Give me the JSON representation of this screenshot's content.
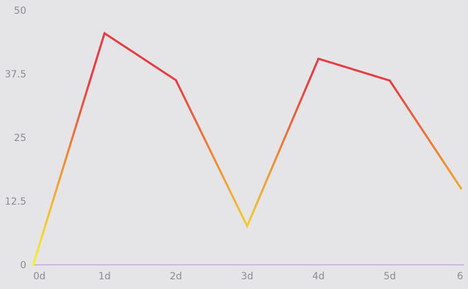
{
  "chart_data": {
    "type": "line",
    "title": "",
    "xlabel": "",
    "ylabel": "",
    "x": [
      "0d",
      "1d",
      "2d",
      "3d",
      "4d",
      "5d",
      "6"
    ],
    "series": [
      {
        "values": [
          0,
          45.5,
          36.3,
          7.6,
          40.5,
          36.2,
          15.0
        ]
      }
    ],
    "ylim": [
      0,
      50
    ],
    "yticks": [
      0,
      12.5,
      25,
      37.5,
      50
    ],
    "ytick_labels": [
      "0",
      "12.5",
      "25",
      "37.5",
      "50"
    ],
    "grid": false,
    "legend": "none",
    "colors": {
      "line_high": "#e83a3f",
      "line_mid": "#ee8a32",
      "line_low": "#f6f22b",
      "baseline": "#c5a8d7",
      "tick_text": "#8d8a92",
      "background": "#e5e4e6"
    }
  }
}
